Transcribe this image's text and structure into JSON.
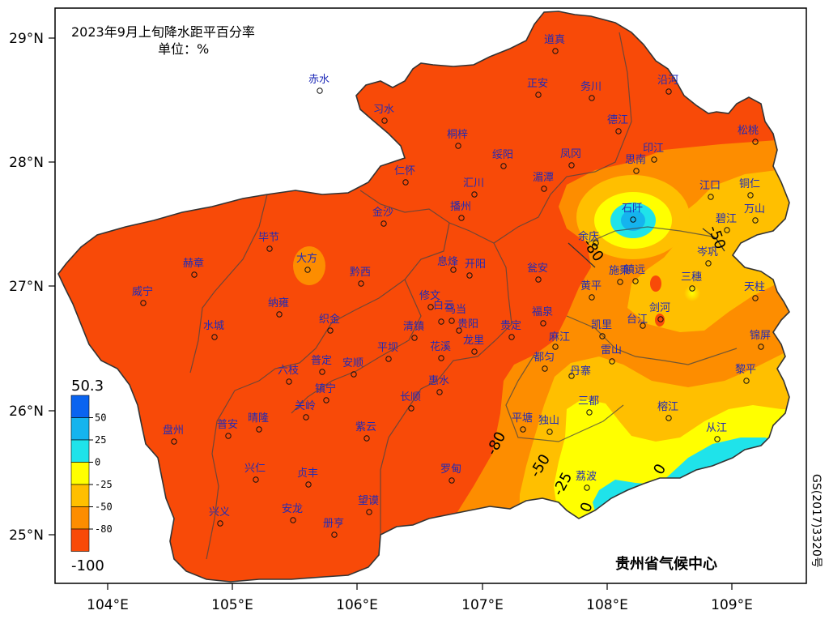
{
  "title": "2023年9月上旬降水距平百分率",
  "unit_label": "单位：%",
  "credit": "贵州省气候中心",
  "map_approval": "GS(2017)3320号",
  "lat_ticks": [
    "29°N",
    "28°N",
    "27°N",
    "26°N",
    "25°N"
  ],
  "lon_ticks": [
    "104°E",
    "105°E",
    "106°E",
    "107°E",
    "108°E",
    "109°E"
  ],
  "legend": {
    "max_label": "50.3",
    "min_label": "-100",
    "levels": [
      "50",
      "25",
      "0",
      "-25",
      "-50",
      "-80"
    ],
    "colors": [
      "#0a64f0",
      "#15b4ee",
      "#1fe3ea",
      "#ffff00",
      "#ffbf00",
      "#fd8d00",
      "#f84a08"
    ]
  },
  "contour_labels": [
    "-80",
    "-50",
    "-25",
    "0",
    "0",
    "-80",
    "-50"
  ],
  "stations": [
    "赤水",
    "习水",
    "桐梓",
    "正安",
    "道真",
    "务川",
    "沿河",
    "德江",
    "松桃",
    "印江",
    "思南",
    "凤冈",
    "绥阳",
    "湄潭",
    "汇川",
    "仁怀",
    "播州",
    "金沙",
    "毕节",
    "赫章",
    "大方",
    "黔西",
    "江口",
    "铜仁",
    "石阡",
    "万山",
    "碧江",
    "余庆",
    "施秉",
    "镇远",
    "岑巩",
    "三穗",
    "天柱",
    "息烽",
    "开阳",
    "瓮安",
    "黄平",
    "威宁",
    "纳雍",
    "织金",
    "修文",
    "乌当",
    "清镇",
    "白云",
    "花溪",
    "贵阳",
    "贵定",
    "福泉",
    "凯里",
    "剑河",
    "台江",
    "锦屏",
    "麻江",
    "雷山",
    "黎平",
    "都匀",
    "丹寨",
    "水城",
    "六枝",
    "普定",
    "安顺",
    "平坝",
    "龙里",
    "惠水",
    "长顺",
    "镇宁",
    "关岭",
    "普安",
    "晴隆",
    "盘州",
    "紫云",
    "平塘",
    "独山",
    "三都",
    "榕江",
    "从江",
    "兴仁",
    "贞丰",
    "罗甸",
    "荔波",
    "兴义",
    "安龙",
    "册亨",
    "望谟"
  ]
}
